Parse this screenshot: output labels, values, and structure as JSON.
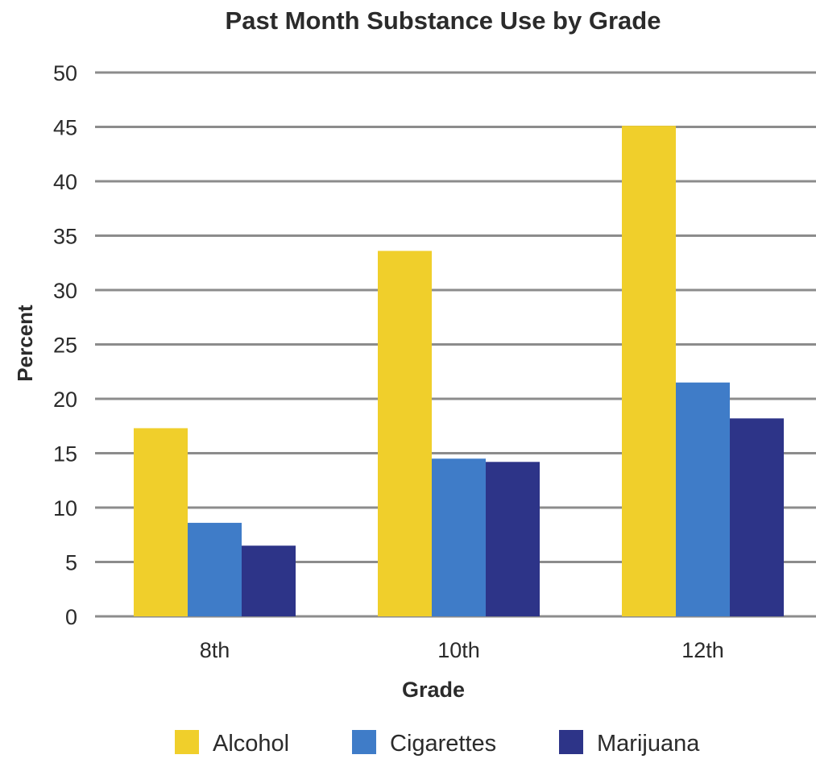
{
  "chart_data": {
    "type": "bar",
    "title": "Past Month Substance Use by Grade",
    "xlabel": "Grade",
    "ylabel": "Percent",
    "categories": [
      "8th",
      "10th",
      "12th"
    ],
    "ylim": [
      0,
      50
    ],
    "yticks": [
      0,
      5,
      10,
      15,
      20,
      25,
      30,
      35,
      40,
      45,
      50
    ],
    "grid": true,
    "legend_position": "bottom",
    "series": [
      {
        "name": "Alcohol",
        "color": "#f0cf2b",
        "values": [
          17.3,
          33.6,
          45.1
        ]
      },
      {
        "name": "Cigarettes",
        "color": "#3f7cc8",
        "values": [
          8.6,
          14.5,
          21.5
        ]
      },
      {
        "name": "Marijuana",
        "color": "#2d3488",
        "values": [
          6.5,
          14.2,
          18.2
        ]
      }
    ],
    "colors": {
      "gridline": "#8c8c8c",
      "text": "#2b2b2b"
    }
  }
}
